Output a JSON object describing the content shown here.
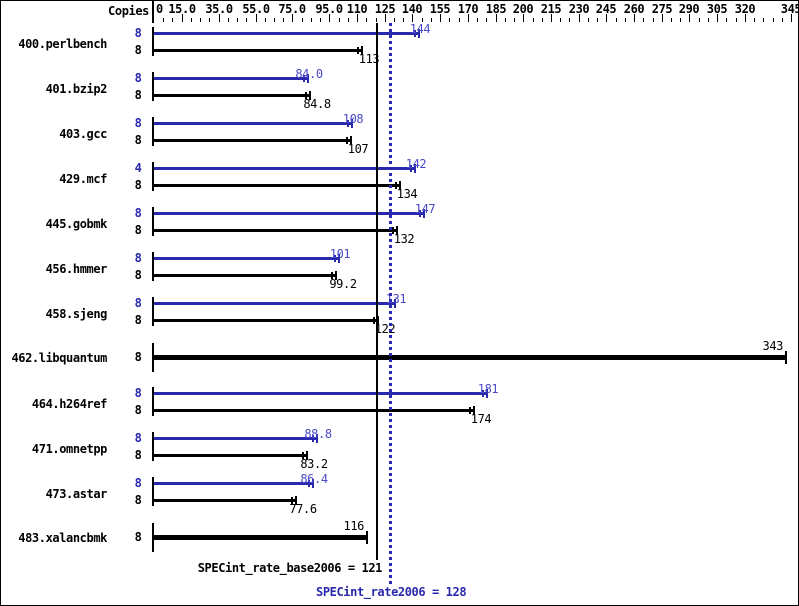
{
  "chart_data": {
    "type": "bar",
    "orientation": "horizontal",
    "copies_label": "Copies",
    "xlim": [
      0,
      345
    ],
    "minor_tick_step": 5,
    "grid": false,
    "axis_labels": [
      {
        "value": 0,
        "text": "0"
      },
      {
        "value": 15,
        "text": "15.0"
      },
      {
        "value": 35,
        "text": "35.0"
      },
      {
        "value": 55,
        "text": "55.0"
      },
      {
        "value": 75,
        "text": "75.0"
      },
      {
        "value": 95,
        "text": "95.0"
      },
      {
        "value": 110,
        "text": "110"
      },
      {
        "value": 125,
        "text": "125"
      },
      {
        "value": 140,
        "text": "140"
      },
      {
        "value": 155,
        "text": "155"
      },
      {
        "value": 170,
        "text": "170"
      },
      {
        "value": 185,
        "text": "185"
      },
      {
        "value": 200,
        "text": "200"
      },
      {
        "value": 215,
        "text": "215"
      },
      {
        "value": 230,
        "text": "230"
      },
      {
        "value": 245,
        "text": "245"
      },
      {
        "value": 260,
        "text": "260"
      },
      {
        "value": 275,
        "text": "275"
      },
      {
        "value": 290,
        "text": "290"
      },
      {
        "value": 305,
        "text": "305"
      },
      {
        "value": 320,
        "text": "320"
      },
      {
        "value": 345,
        "text": "345"
      }
    ],
    "benchmarks": [
      {
        "name": "400.perlbench",
        "bars": [
          {
            "series": "peak",
            "copies": "8",
            "value": 144,
            "label": "144"
          },
          {
            "series": "base",
            "copies": "8",
            "value": 113,
            "label": "113"
          }
        ]
      },
      {
        "name": "401.bzip2",
        "bars": [
          {
            "series": "peak",
            "copies": "8",
            "value": 84.0,
            "label": "84.0"
          },
          {
            "series": "base",
            "copies": "8",
            "value": 84.8,
            "label": "84.8"
          }
        ]
      },
      {
        "name": "403.gcc",
        "bars": [
          {
            "series": "peak",
            "copies": "8",
            "value": 108,
            "label": "108"
          },
          {
            "series": "base",
            "copies": "8",
            "value": 107,
            "label": "107"
          }
        ]
      },
      {
        "name": "429.mcf",
        "bars": [
          {
            "series": "peak",
            "copies": "4",
            "value": 142,
            "label": "142"
          },
          {
            "series": "base",
            "copies": "8",
            "value": 134,
            "label": "134"
          }
        ]
      },
      {
        "name": "445.gobmk",
        "bars": [
          {
            "series": "peak",
            "copies": "8",
            "value": 147,
            "label": "147"
          },
          {
            "series": "base",
            "copies": "8",
            "value": 132,
            "label": "132"
          }
        ]
      },
      {
        "name": "456.hmmer",
        "bars": [
          {
            "series": "peak",
            "copies": "8",
            "value": 101,
            "label": "101"
          },
          {
            "series": "base",
            "copies": "8",
            "value": 99.2,
            "label": "99.2"
          }
        ]
      },
      {
        "name": "458.sjeng",
        "bars": [
          {
            "series": "peak",
            "copies": "8",
            "value": 131,
            "label": "131"
          },
          {
            "series": "base",
            "copies": "8",
            "value": 122,
            "label": "122"
          }
        ]
      },
      {
        "name": "462.libquantum",
        "bars": [
          {
            "series": "base",
            "copies": "8",
            "value": 343,
            "label": "343",
            "thick": true
          }
        ]
      },
      {
        "name": "464.h264ref",
        "bars": [
          {
            "series": "peak",
            "copies": "8",
            "value": 181,
            "label": "181"
          },
          {
            "series": "base",
            "copies": "8",
            "value": 174,
            "label": "174"
          }
        ]
      },
      {
        "name": "471.omnetpp",
        "bars": [
          {
            "series": "peak",
            "copies": "8",
            "value": 88.8,
            "label": "88.8"
          },
          {
            "series": "base",
            "copies": "8",
            "value": 83.2,
            "label": "83.2"
          }
        ]
      },
      {
        "name": "473.astar",
        "bars": [
          {
            "series": "peak",
            "copies": "8",
            "value": 86.4,
            "label": "86.4"
          },
          {
            "series": "base",
            "copies": "8",
            "value": 77.6,
            "label": "77.6"
          }
        ]
      },
      {
        "name": "483.xalancbmk",
        "bars": [
          {
            "series": "base",
            "copies": "8",
            "value": 116,
            "label": "116",
            "thick": true
          }
        ]
      }
    ],
    "reference_lines": [
      {
        "series": "base",
        "label": "SPECint_rate_base2006 = 121",
        "value": 121,
        "line_style": "solid",
        "color": "black"
      },
      {
        "series": "peak",
        "label": "SPECint_rate2006 = 128",
        "value": 128,
        "line_style": "dotted",
        "color": "blue"
      }
    ],
    "colors": {
      "peak_bar": "#2929ad",
      "peak_value_text": "#4a4ac8",
      "base_bar": "#000000",
      "base_value_text": "#000000",
      "background": "#ffffff"
    },
    "legend_position": "none"
  }
}
